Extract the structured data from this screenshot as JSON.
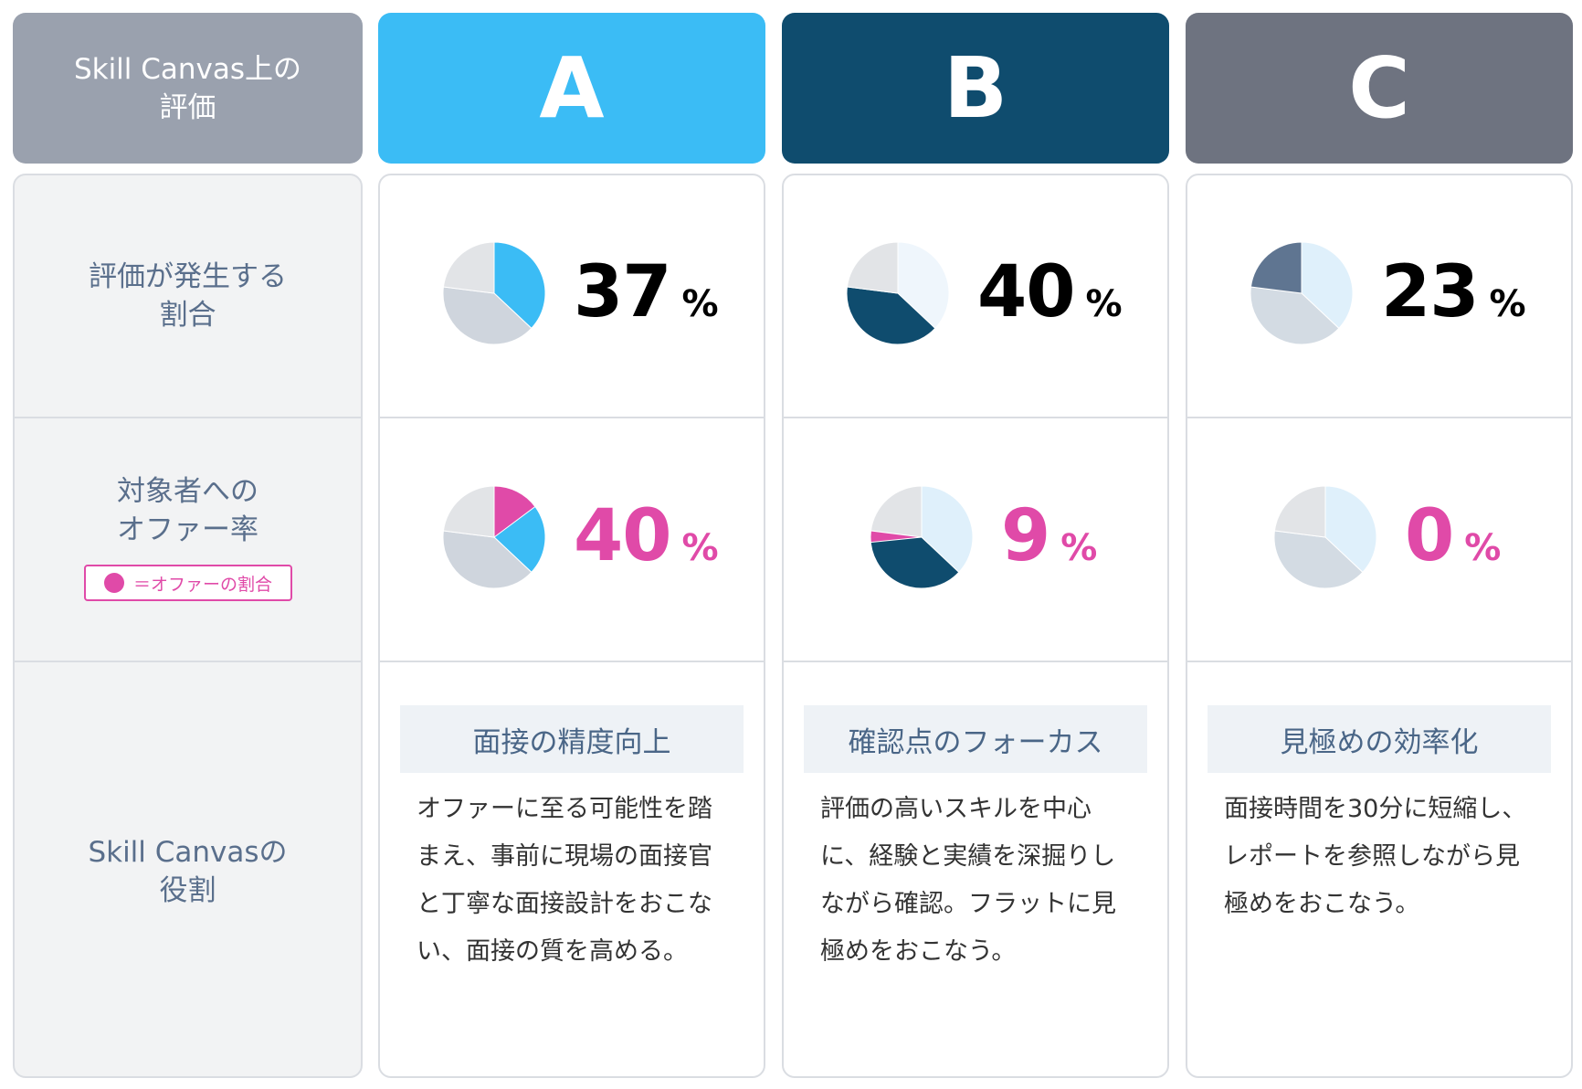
{
  "header": {
    "label": "Skill Canvas上の\n評価",
    "columns": [
      {
        "letter": "A",
        "color": "#3bbcf5"
      },
      {
        "letter": "B",
        "color": "#0f4c6e"
      },
      {
        "letter": "C",
        "color": "#6e7380"
      }
    ]
  },
  "rows": {
    "rate_label": "評価が発生する\n割合",
    "offer_label": "対象者への\nオファー率",
    "offer_legend": "＝オファーの割合",
    "role_label": "Skill Canvasの\n役割"
  },
  "columns": [
    {
      "rate": "37",
      "rate_unit": "%",
      "offer": "40",
      "offer_unit": "%",
      "role_title": "面接の精度向上",
      "role_desc": "オファーに至る可能性を踏まえ、事前に現場の面接官と丁寧な面接設計をおこない、面接の質を高める。"
    },
    {
      "rate": "40",
      "rate_unit": "%",
      "offer": "9",
      "offer_unit": "%",
      "role_title": "確認点のフォーカス",
      "role_desc": "評価の高いスキルを中心に、経験と実績を深掘りしながら確認。フラットに見極めをおこなう。"
    },
    {
      "rate": "23",
      "rate_unit": "%",
      "offer": "0",
      "offer_unit": "%",
      "role_title": "見極めの効率化",
      "role_desc": "面接時間を30分に短縮し、レポートを参照しながら見極めをおこなう。"
    }
  ],
  "colors": {
    "A": "#3bbcf5",
    "B": "#0f4c6e",
    "C": "#6e7380",
    "offer": "#e04aa8",
    "other_a": "#e2e4e7",
    "other_b": "#cfd5dd"
  },
  "chart_data": [
    {
      "type": "pie",
      "title": "評価が発生する割合",
      "categories": [
        "A",
        "B",
        "C"
      ],
      "values": [
        37,
        40,
        23
      ],
      "unit": "%"
    },
    {
      "type": "pie",
      "title": "対象者へのオファー率",
      "categories": [
        "A",
        "B",
        "C"
      ],
      "values": [
        40,
        9,
        0
      ],
      "unit": "%"
    }
  ]
}
